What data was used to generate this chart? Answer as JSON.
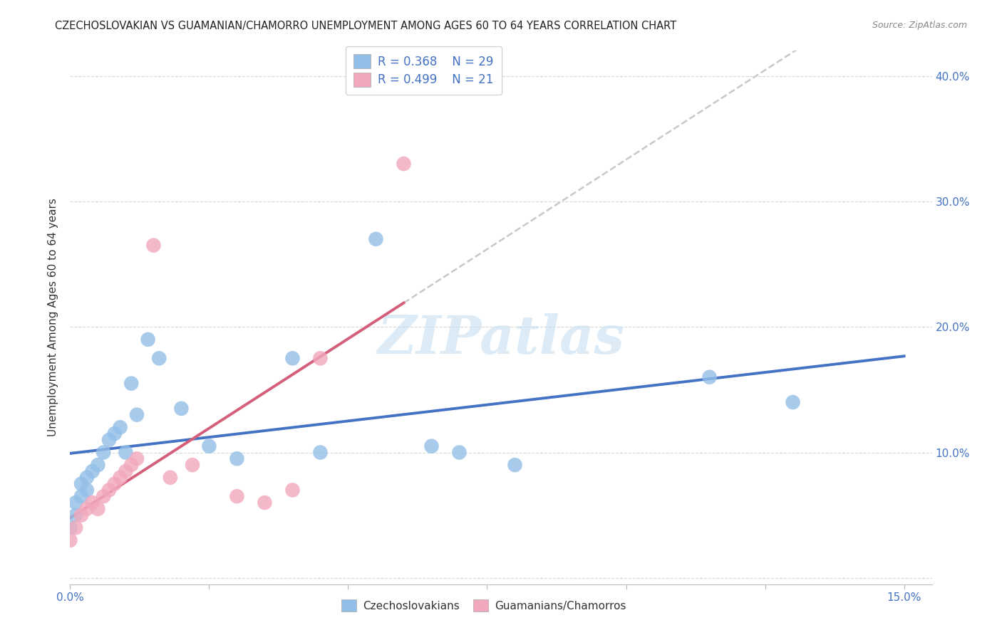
{
  "title": "CZECHOSLOVAKIAN VS GUAMANIAN/CHAMORRO UNEMPLOYMENT AMONG AGES 60 TO 64 YEARS CORRELATION CHART",
  "source": "Source: ZipAtlas.com",
  "ylabel": "Unemployment Among Ages 60 to 64 years",
  "xlim": [
    0.0,
    0.155
  ],
  "ylim": [
    -0.005,
    0.42
  ],
  "yticks": [
    0.0,
    0.1,
    0.2,
    0.3,
    0.4
  ],
  "xticks": [
    0.0,
    0.025,
    0.05,
    0.075,
    0.1,
    0.125,
    0.15
  ],
  "xtick_labels": [
    "0.0%",
    "",
    "",
    "",
    "",
    "",
    "15.0%"
  ],
  "ytick_labels_right": [
    "",
    "10.0%",
    "20.0%",
    "30.0%",
    "40.0%"
  ],
  "blue_R": 0.368,
  "blue_N": 29,
  "pink_R": 0.499,
  "pink_N": 21,
  "blue_color": "#92bfe8",
  "pink_color": "#f2a8bc",
  "blue_line_color": "#4472c4",
  "pink_line_color": "#d45f7a",
  "dashed_line_color": "#c8c8c8",
  "background_color": "#ffffff",
  "grid_color": "#d8d8d8",
  "watermark": "ZIPatlas",
  "blue_x": [
    0.0,
    0.001,
    0.001,
    0.002,
    0.002,
    0.003,
    0.003,
    0.004,
    0.005,
    0.006,
    0.007,
    0.008,
    0.009,
    0.01,
    0.011,
    0.012,
    0.014,
    0.016,
    0.02,
    0.025,
    0.03,
    0.04,
    0.045,
    0.055,
    0.065,
    0.07,
    0.08,
    0.115,
    0.13
  ],
  "blue_y": [
    0.04,
    0.05,
    0.06,
    0.065,
    0.075,
    0.07,
    0.08,
    0.085,
    0.09,
    0.1,
    0.11,
    0.115,
    0.12,
    0.1,
    0.155,
    0.13,
    0.19,
    0.175,
    0.135,
    0.105,
    0.095,
    0.175,
    0.1,
    0.27,
    0.105,
    0.1,
    0.09,
    0.16,
    0.14
  ],
  "pink_x": [
    0.0,
    0.001,
    0.002,
    0.003,
    0.004,
    0.005,
    0.006,
    0.007,
    0.008,
    0.009,
    0.01,
    0.011,
    0.012,
    0.015,
    0.018,
    0.022,
    0.03,
    0.035,
    0.04,
    0.045,
    0.06
  ],
  "pink_y": [
    0.03,
    0.04,
    0.05,
    0.055,
    0.06,
    0.055,
    0.065,
    0.07,
    0.075,
    0.08,
    0.085,
    0.09,
    0.095,
    0.265,
    0.08,
    0.09,
    0.065,
    0.06,
    0.07,
    0.175,
    0.33
  ],
  "legend_label_blue": "Czechoslovakians",
  "legend_label_pink": "Guamanians/Chamorros"
}
